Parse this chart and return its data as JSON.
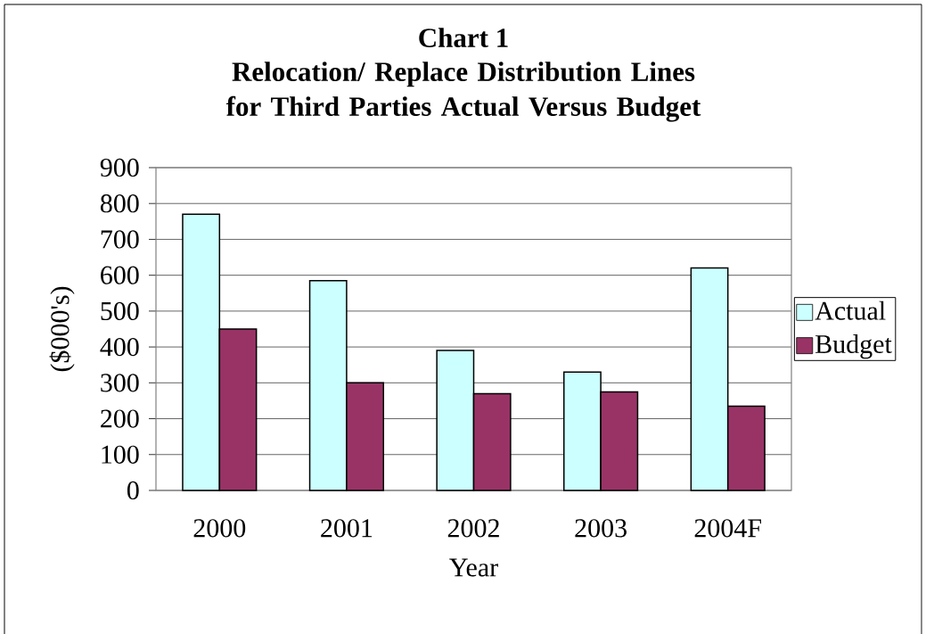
{
  "chart_data": {
    "type": "bar",
    "title": "Chart 1",
    "subtitle": "Relocation/ Replace Distribution Lines for Third Parties Actual Versus Budget",
    "xlabel": "Year",
    "ylabel": "($000's)",
    "categories": [
      "2000",
      "2001",
      "2002",
      "2003",
      "2004F"
    ],
    "series": [
      {
        "name": "Actual",
        "color": "#ccffff",
        "values": [
          770,
          585,
          390,
          330,
          620
        ]
      },
      {
        "name": "Budget",
        "color": "#993366",
        "values": [
          450,
          300,
          270,
          275,
          235
        ]
      }
    ],
    "ylim": [
      0,
      900
    ],
    "yticks": [
      0,
      100,
      200,
      300,
      400,
      500,
      600,
      700,
      800,
      900
    ],
    "grid": "y",
    "legend": "right"
  }
}
